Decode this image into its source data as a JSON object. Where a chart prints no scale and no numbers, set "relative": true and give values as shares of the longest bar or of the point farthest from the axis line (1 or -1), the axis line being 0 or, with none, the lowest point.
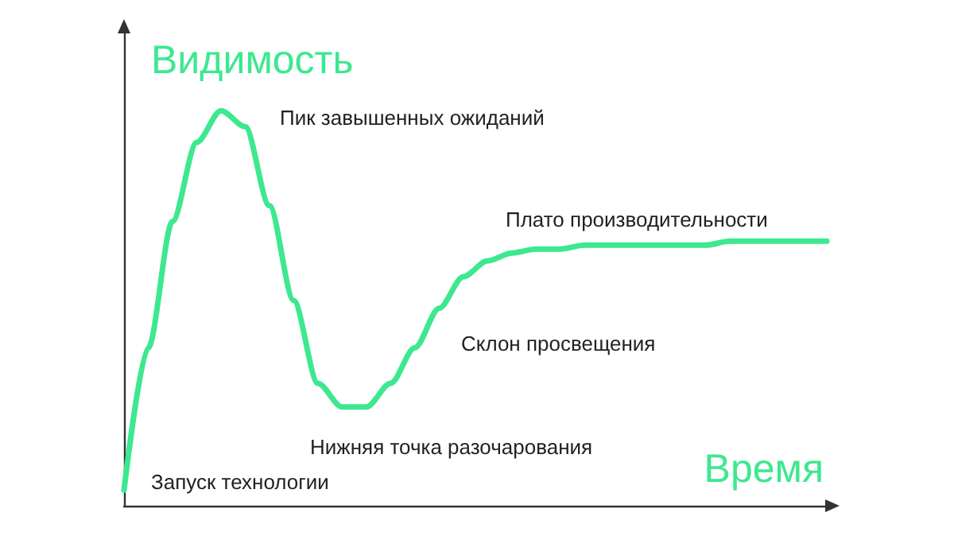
{
  "chart_data": {
    "type": "line",
    "relative": true,
    "ylabel": "Видимость",
    "xlabel": "Время",
    "color": "#3de88f",
    "marker": "none",
    "grid": false,
    "categories": [
      null,
      null,
      null,
      null,
      null,
      null,
      null,
      null,
      null,
      null,
      null,
      null,
      null,
      null,
      null,
      null,
      null,
      null,
      null,
      null,
      null,
      null,
      null,
      null,
      null,
      null,
      null,
      null,
      null,
      null
    ],
    "values": [
      0.04,
      0.4,
      0.72,
      0.92,
      1,
      0.96,
      0.76,
      0.52,
      0.31,
      0.25,
      0.25,
      0.31,
      0.4,
      0.5,
      0.58,
      0.62,
      0.64,
      0.65,
      0.65,
      0.66,
      0.66,
      0.66,
      0.66,
      0.66,
      0.66,
      0.67,
      0.67,
      0.67,
      0.67,
      0.67
    ],
    "annotations": [
      "Пик завышенных ожиданий",
      "Плато производительности",
      "Склон просвещения",
      "Нижняя точка разочарования",
      "Запуск технологии"
    ]
  }
}
